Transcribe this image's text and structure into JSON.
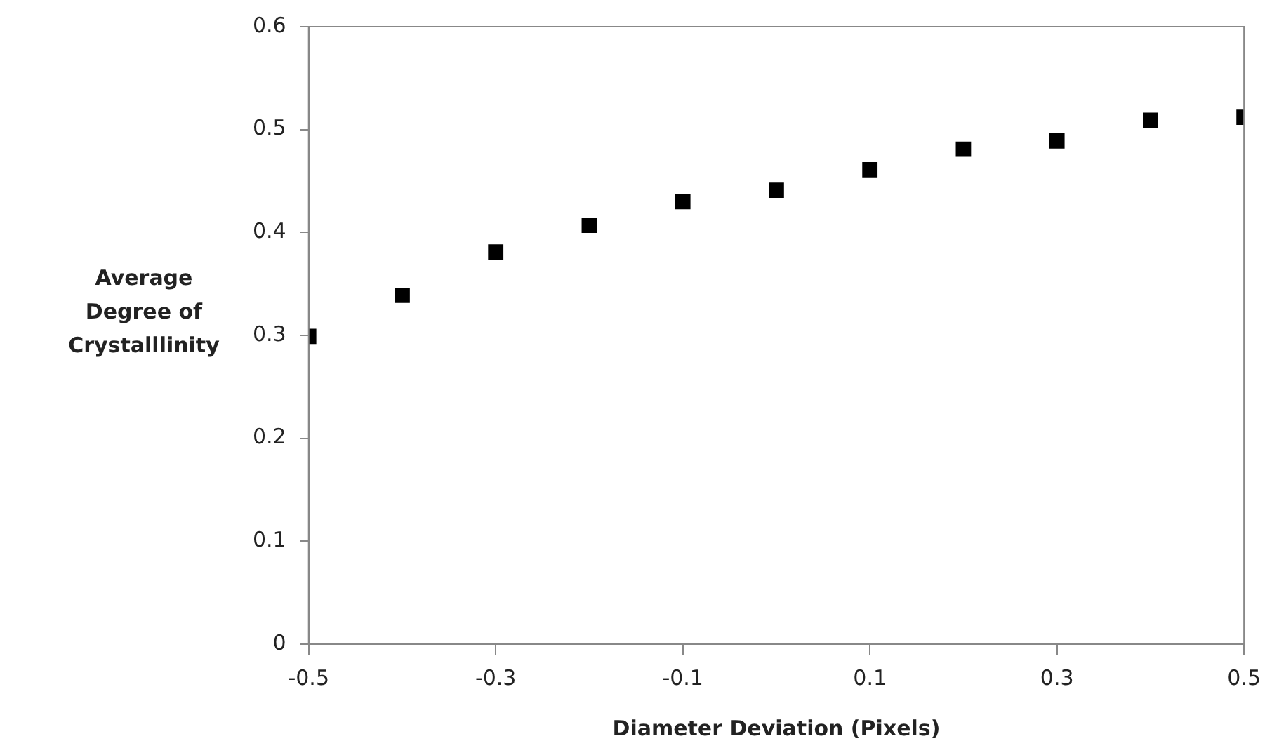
{
  "chart_data": {
    "type": "scatter",
    "xlabel": "Diameter Deviation (Pixels)",
    "ylabel": "Average Degree of Crystalllinity",
    "x": [
      -0.5,
      -0.4,
      -0.3,
      -0.2,
      -0.1,
      0,
      0.1,
      0.2,
      0.3,
      0.4,
      0.5
    ],
    "series": [
      {
        "color": "#000000",
        "values": [
          0.299,
          0.339,
          0.381,
          0.407,
          0.43,
          0.441,
          0.461,
          0.481,
          0.489,
          0.509,
          0.512
        ]
      }
    ],
    "xlim": [
      -0.5,
      0.5
    ],
    "xticks": [
      -0.5,
      -0.3,
      -0.1,
      0.1,
      0.3,
      0.5
    ],
    "ylim": [
      0,
      0.6
    ],
    "yticks": [
      0,
      0.1,
      0.2,
      0.3,
      0.4,
      0.5,
      0.6
    ],
    "grid": false,
    "legend": false,
    "marker": "square"
  }
}
